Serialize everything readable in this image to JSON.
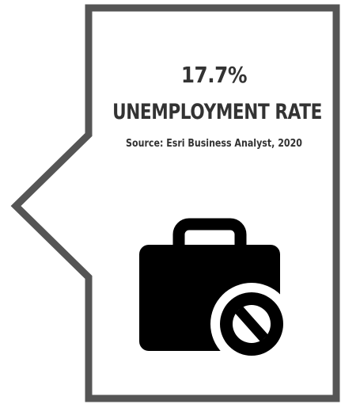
{
  "stat": {
    "value": "17.7%",
    "label": "UNEMPLOYMENT RATE",
    "source": "Source: Esri Business Analyst, 2020"
  },
  "icon": {
    "name": "briefcase-no-icon"
  },
  "colors": {
    "border": "#555555",
    "text": "#333333",
    "icon": "#000000",
    "background": "#ffffff"
  }
}
